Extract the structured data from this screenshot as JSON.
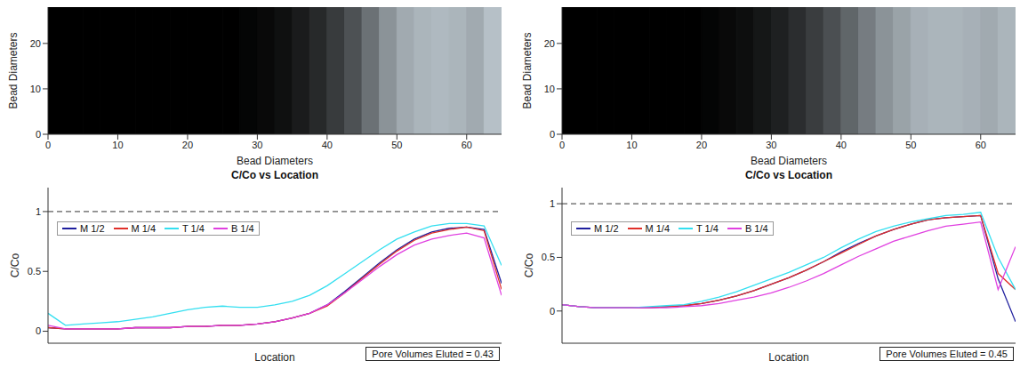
{
  "chart_data": [
    {
      "type": "heatmap",
      "xlabel": "Bead Diameters",
      "ylabel": "Bead Diameters",
      "xlim": [
        0,
        65
      ],
      "ylim": [
        0,
        28
      ],
      "xticks": [
        0,
        10,
        20,
        30,
        40,
        50,
        60
      ],
      "yticks": [
        0,
        10,
        20
      ],
      "bins": [
        0,
        2.5,
        5,
        7.5,
        10,
        12.5,
        15,
        17.5,
        20,
        22.5,
        25,
        27.5,
        30,
        32.5,
        35,
        37.5,
        40,
        42.5,
        45,
        47.5,
        50,
        52.5,
        55,
        57.5,
        60,
        62.5,
        65
      ],
      "values": [
        0,
        0,
        0,
        0,
        0,
        0,
        0,
        0,
        0,
        0,
        0,
        0.02,
        0.04,
        0.07,
        0.12,
        0.18,
        0.26,
        0.36,
        0.5,
        0.65,
        0.75,
        0.8,
        0.82,
        0.8,
        0.75,
        0.85
      ],
      "intensity_range": [
        0,
        1
      ]
    },
    {
      "type": "line",
      "title": "C/Co vs Location",
      "xlabel": "Location",
      "ylabel": "C/Co",
      "xlim": [
        0,
        65
      ],
      "ylim": [
        -0.1,
        1.2
      ],
      "yticks": [
        0,
        0.5,
        1
      ],
      "tick_labels": "y",
      "legend": "upper left",
      "reference_lines": [
        1
      ],
      "annotation": "Pore Volumes Eluted = 0.43",
      "x": [
        0,
        2.5,
        5,
        7.5,
        10,
        12.5,
        15,
        17.5,
        20,
        22.5,
        25,
        27.5,
        30,
        32.5,
        35,
        37.5,
        40,
        42.5,
        45,
        47.5,
        50,
        52.5,
        55,
        57.5,
        60,
        62.5,
        65
      ],
      "series": [
        {
          "name": "M 1/2",
          "color": "#1f1f9e",
          "values": [
            0.03,
            0.02,
            0.02,
            0.02,
            0.02,
            0.03,
            0.03,
            0.03,
            0.04,
            0.04,
            0.05,
            0.05,
            0.06,
            0.08,
            0.11,
            0.15,
            0.22,
            0.33,
            0.45,
            0.57,
            0.68,
            0.77,
            0.83,
            0.86,
            0.87,
            0.85,
            0.4
          ]
        },
        {
          "name": "M 1/4",
          "color": "#e0302a",
          "values": [
            0.03,
            0.02,
            0.02,
            0.02,
            0.02,
            0.03,
            0.03,
            0.03,
            0.04,
            0.04,
            0.05,
            0.05,
            0.06,
            0.08,
            0.11,
            0.15,
            0.21,
            0.32,
            0.44,
            0.56,
            0.67,
            0.76,
            0.82,
            0.85,
            0.87,
            0.84,
            0.35
          ]
        },
        {
          "name": "T 1/4",
          "color": "#33dff0",
          "values": [
            0.15,
            0.05,
            0.06,
            0.07,
            0.08,
            0.1,
            0.12,
            0.15,
            0.18,
            0.2,
            0.21,
            0.2,
            0.2,
            0.22,
            0.25,
            0.3,
            0.38,
            0.48,
            0.58,
            0.68,
            0.77,
            0.83,
            0.88,
            0.9,
            0.9,
            0.88,
            0.55
          ]
        },
        {
          "name": "B 1/4",
          "color": "#e040e0",
          "values": [
            0.05,
            0.02,
            0.02,
            0.02,
            0.02,
            0.03,
            0.03,
            0.03,
            0.04,
            0.04,
            0.05,
            0.05,
            0.06,
            0.08,
            0.11,
            0.15,
            0.22,
            0.32,
            0.43,
            0.54,
            0.64,
            0.72,
            0.77,
            0.8,
            0.82,
            0.78,
            0.3
          ]
        }
      ]
    },
    {
      "type": "heatmap",
      "xlabel": "Bead Diameters",
      "ylabel": "Bead Diameters",
      "xlim": [
        0,
        65
      ],
      "ylim": [
        0,
        28
      ],
      "xticks": [
        0,
        10,
        20,
        30,
        40,
        50,
        60
      ],
      "yticks": [
        0,
        10,
        20
      ],
      "bins": [
        0,
        2.5,
        5,
        7.5,
        10,
        12.5,
        15,
        17.5,
        20,
        22.5,
        25,
        27.5,
        30,
        32.5,
        35,
        37.5,
        40,
        42.5,
        45,
        47.5,
        50,
        52.5,
        55,
        57.5,
        60,
        62.5,
        65
      ],
      "values": [
        0,
        0,
        0,
        0,
        0,
        0,
        0,
        0,
        0.02,
        0.04,
        0.06,
        0.1,
        0.14,
        0.2,
        0.27,
        0.35,
        0.45,
        0.55,
        0.65,
        0.72,
        0.78,
        0.8,
        0.8,
        0.78,
        0.75,
        0.8
      ],
      "intensity_range": [
        0,
        1
      ]
    },
    {
      "type": "line",
      "title": "C/Co vs Location",
      "xlabel": "Location",
      "ylabel": "C/Co",
      "xlim": [
        0,
        65
      ],
      "ylim": [
        -0.3,
        1.15
      ],
      "yticks": [
        0,
        0.5,
        1
      ],
      "tick_labels": "y",
      "legend": "upper left",
      "reference_lines": [
        1
      ],
      "annotation": "Pore Volumes Eluted = 0.45",
      "x": [
        0,
        2.5,
        5,
        7.5,
        10,
        12.5,
        15,
        17.5,
        20,
        22.5,
        25,
        27.5,
        30,
        32.5,
        35,
        37.5,
        40,
        42.5,
        45,
        47.5,
        50,
        52.5,
        55,
        57.5,
        60,
        62.5,
        65
      ],
      "series": [
        {
          "name": "M 1/2",
          "color": "#1f1f9e",
          "values": [
            0.06,
            0.04,
            0.03,
            0.03,
            0.03,
            0.03,
            0.04,
            0.05,
            0.07,
            0.1,
            0.14,
            0.19,
            0.25,
            0.31,
            0.38,
            0.46,
            0.55,
            0.63,
            0.7,
            0.76,
            0.81,
            0.85,
            0.87,
            0.88,
            0.89,
            0.3,
            -0.1
          ]
        },
        {
          "name": "M 1/4",
          "color": "#e0302a",
          "values": [
            0.06,
            0.04,
            0.03,
            0.03,
            0.03,
            0.03,
            0.04,
            0.05,
            0.07,
            0.1,
            0.14,
            0.19,
            0.25,
            0.31,
            0.38,
            0.46,
            0.54,
            0.62,
            0.7,
            0.76,
            0.81,
            0.85,
            0.87,
            0.88,
            0.89,
            0.35,
            0.2
          ]
        },
        {
          "name": "T 1/4",
          "color": "#33dff0",
          "values": [
            0.06,
            0.04,
            0.03,
            0.03,
            0.03,
            0.04,
            0.05,
            0.06,
            0.09,
            0.13,
            0.18,
            0.24,
            0.3,
            0.36,
            0.43,
            0.5,
            0.59,
            0.67,
            0.74,
            0.79,
            0.83,
            0.86,
            0.89,
            0.9,
            0.92,
            0.5,
            0.2
          ]
        },
        {
          "name": "B 1/4",
          "color": "#e040e0",
          "values": [
            0.06,
            0.04,
            0.03,
            0.03,
            0.03,
            0.03,
            0.03,
            0.04,
            0.05,
            0.07,
            0.1,
            0.13,
            0.17,
            0.22,
            0.28,
            0.35,
            0.43,
            0.51,
            0.58,
            0.65,
            0.7,
            0.75,
            0.79,
            0.81,
            0.83,
            0.2,
            0.6
          ]
        }
      ]
    }
  ]
}
